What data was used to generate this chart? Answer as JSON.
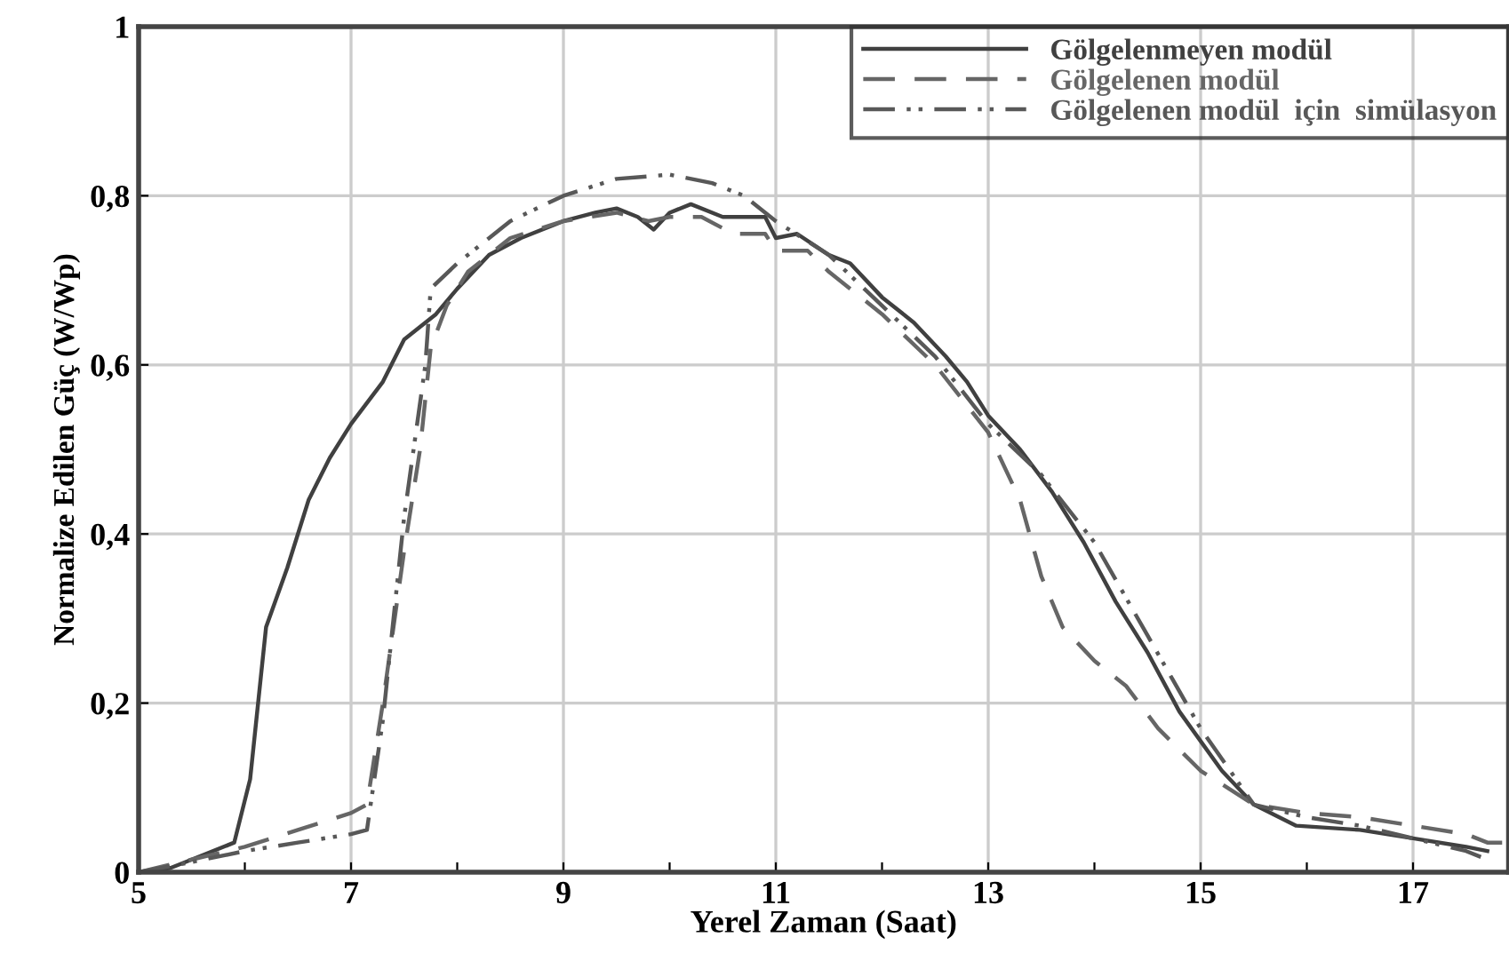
{
  "chart_data": {
    "type": "line",
    "xlabel": "Yerel Zaman (Saat)",
    "ylabel": "Normalize Edilen Güç (W/Wp)",
    "xlim": [
      5,
      17.9
    ],
    "ylim": [
      0,
      1
    ],
    "xticks": [
      5,
      {
        "value": 6,
        "label": null
      },
      7,
      {
        "value": 8,
        "label": null
      },
      9,
      {
        "value": 10,
        "label": null
      },
      11,
      {
        "value": 12,
        "label": null
      },
      13,
      {
        "value": 14,
        "label": null
      },
      15,
      {
        "value": 16,
        "label": null
      },
      17
    ],
    "yticks": [
      0,
      {
        "value": 0.2,
        "label": "0,2"
      },
      {
        "value": 0.4,
        "label": "0,4"
      },
      {
        "value": 0.6,
        "label": "0,6"
      },
      {
        "value": 0.8,
        "label": "0,8"
      },
      1
    ],
    "grid": true,
    "legend": "top right",
    "series": [
      {
        "name": "Gölgelenmeyen modül",
        "color": "#404040",
        "line_style": "solid",
        "x": [
          5,
          5.3,
          5.5,
          5.9,
          6.05,
          6.2,
          6.4,
          6.6,
          6.8,
          7,
          7.3,
          7.5,
          7.8,
          8,
          8.3,
          8.6,
          9,
          9.3,
          9.5,
          9.7,
          9.85,
          10,
          10.2,
          10.5,
          10.9,
          11,
          11.2,
          11.5,
          11.7,
          12,
          12.3,
          12.6,
          12.8,
          13,
          13.3,
          13.6,
          13.9,
          14.2,
          14.5,
          14.8,
          15.2,
          15.5,
          15.9,
          16.5,
          17,
          17.5,
          17.7
        ],
        "values": [
          0,
          0.005,
          0.015,
          0.035,
          0.11,
          0.29,
          0.36,
          0.44,
          0.49,
          0.53,
          0.58,
          0.63,
          0.66,
          0.69,
          0.73,
          0.75,
          0.77,
          0.78,
          0.785,
          0.775,
          0.76,
          0.78,
          0.79,
          0.775,
          0.775,
          0.75,
          0.755,
          0.73,
          0.72,
          0.68,
          0.65,
          0.61,
          0.58,
          0.54,
          0.5,
          0.45,
          0.39,
          0.32,
          0.26,
          0.19,
          0.12,
          0.08,
          0.055,
          0.05,
          0.04,
          0.03,
          0.025
        ]
      },
      {
        "name": "Gölgelenen modül",
        "color": "#666666",
        "line_style": "dashed",
        "x": [
          5,
          5.5,
          6,
          6.5,
          7,
          7.15,
          7.3,
          7.5,
          7.65,
          7.75,
          7.9,
          8.1,
          8.5,
          9,
          9.5,
          9.8,
          10,
          10.3,
          10.6,
          10.9,
          11,
          11.3,
          11.5,
          12,
          12.5,
          13,
          13.3,
          13.5,
          13.7,
          14,
          14.3,
          14.6,
          15,
          15.5,
          16,
          16.5,
          17,
          17.5,
          17.7,
          17.9
        ],
        "values": [
          0,
          0.015,
          0.03,
          0.05,
          0.07,
          0.08,
          0.2,
          0.38,
          0.5,
          0.62,
          0.67,
          0.71,
          0.75,
          0.77,
          0.78,
          0.77,
          0.775,
          0.775,
          0.755,
          0.755,
          0.735,
          0.735,
          0.71,
          0.66,
          0.6,
          0.52,
          0.44,
          0.35,
          0.29,
          0.25,
          0.22,
          0.17,
          0.12,
          0.08,
          0.07,
          0.065,
          0.055,
          0.045,
          0.035,
          0.035
        ]
      },
      {
        "name": "Gölgelenen modül  için  simülasyon",
        "color": "#585858",
        "line_style": "dashdotdot",
        "x": [
          5,
          5.5,
          6,
          6.5,
          7,
          7.15,
          7.3,
          7.5,
          7.7,
          7.75,
          8,
          8.5,
          9,
          9.5,
          10,
          10.4,
          10.7,
          11,
          11.5,
          12,
          12.5,
          13,
          13.5,
          14,
          14.5,
          15,
          15.5,
          16,
          16.5,
          17,
          17.5,
          17.7
        ],
        "values": [
          0,
          0.012,
          0.025,
          0.035,
          0.045,
          0.05,
          0.18,
          0.42,
          0.6,
          0.69,
          0.72,
          0.77,
          0.8,
          0.82,
          0.825,
          0.815,
          0.8,
          0.77,
          0.73,
          0.67,
          0.61,
          0.53,
          0.47,
          0.39,
          0.28,
          0.17,
          0.08,
          0.065,
          0.055,
          0.04,
          0.025,
          0.015
        ]
      }
    ]
  }
}
